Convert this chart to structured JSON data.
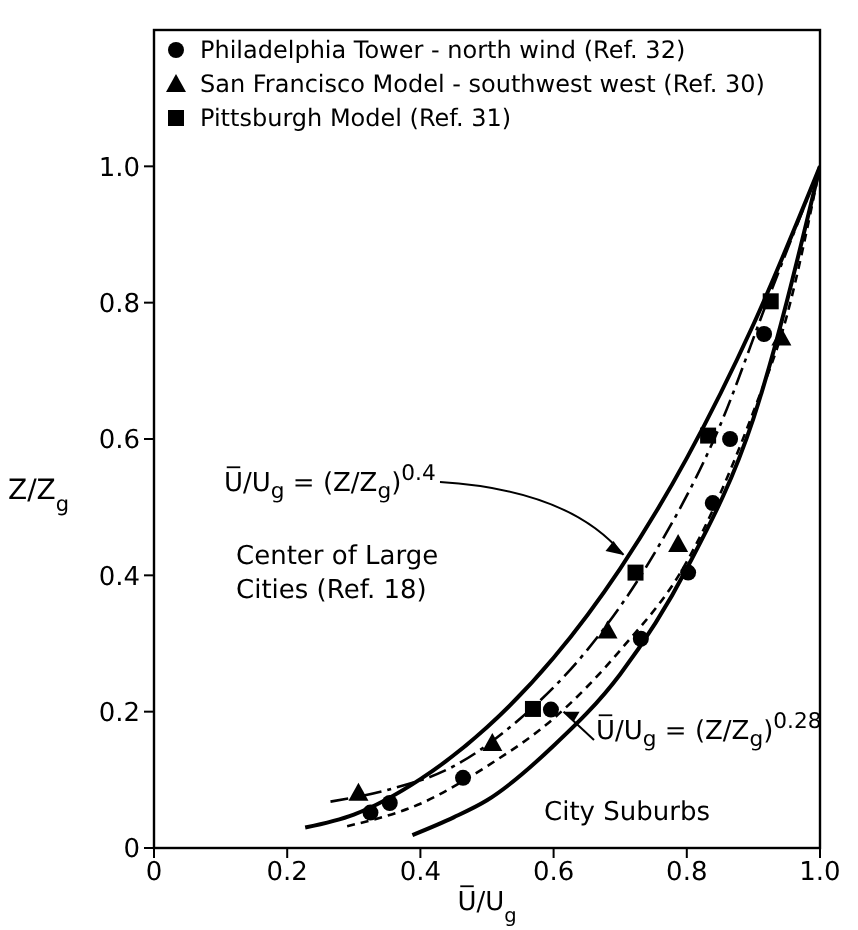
{
  "chart_data": {
    "type": "scatter",
    "xlabel": "U̅/U$_{g}$",
    "ylabel": "Z/Z$_{g}$",
    "xlim": [
      0,
      1.0
    ],
    "ylim": [
      0,
      1.2
    ],
    "xticks": [
      0,
      0.2,
      0.4,
      0.6,
      0.8,
      {
        "value": 1.0,
        "label": "1.0"
      }
    ],
    "yticks": [
      0,
      0.2,
      0.4,
      0.6,
      0.8,
      {
        "value": 1.0,
        "label": "1.0"
      }
    ],
    "grid": false,
    "legend": "top left",
    "annotations": [
      {
        "text": "U̅/U$_{g}$ = (Z/Z$_{g}$)$^{0.4}$",
        "x": 0.705,
        "y": 0.43
      },
      "Center of Large Cities (Ref. 18)",
      {
        "text": "U̅/U$_{g}$ = (Z/Z$_{g}$)$^{0.28}$",
        "x": 0.615,
        "y": 0.2
      },
      "City Suburbs"
    ],
    "series": [
      {
        "name": "Philadelphia Tower - north wind (Ref. 32)",
        "marker": "circle",
        "color": "#000000",
        "x": [
          0.325,
          0.354,
          0.464,
          0.596,
          0.731,
          0.802,
          0.839,
          0.865,
          0.916
        ],
        "values": [
          0.052,
          0.066,
          0.103,
          0.203,
          0.307,
          0.404,
          0.506,
          0.6,
          0.754
        ]
      },
      {
        "name": "San Francisco Model - southwest west (Ref. 30)",
        "marker": "triangle",
        "color": "#000000",
        "x": [
          0.307,
          0.508,
          0.681,
          0.787,
          0.942
        ],
        "values": [
          0.081,
          0.154,
          0.319,
          0.446,
          0.749
        ]
      },
      {
        "name": "Pittsburgh Model (Ref. 31)",
        "marker": "square",
        "color": "#000000",
        "x": [
          0.569,
          0.723,
          0.832,
          0.926
        ],
        "values": [
          0.204,
          0.404,
          0.605,
          0.802
        ]
      },
      {
        "type": "line",
        "line_style": "solid",
        "color": "#000000",
        "x": [
          0.227,
          0.3,
          0.4,
          0.5,
          0.6,
          0.7,
          0.8,
          0.9,
          1.0
        ],
        "values": [
          0.03,
          0.049,
          0.101,
          0.177,
          0.279,
          0.41,
          0.572,
          0.768,
          1.0
        ]
      },
      {
        "type": "line",
        "line_style": "solid",
        "color": "#000000",
        "x": [
          0.388,
          0.45,
          0.5,
          0.6,
          0.7,
          0.8,
          0.9,
          1.0
        ],
        "values": [
          0.019,
          0.045,
          0.07,
          0.15,
          0.255,
          0.41,
          0.63,
          1.0
        ]
      },
      {
        "type": "line",
        "line_style": "dashed",
        "color": "#000000",
        "x": [
          0.265,
          0.35,
          0.45,
          0.55,
          0.65,
          0.75,
          0.85,
          0.92,
          1.0
        ],
        "values": [
          0.068,
          0.085,
          0.12,
          0.19,
          0.29,
          0.43,
          0.62,
          0.8,
          1.0
        ]
      },
      {
        "type": "line",
        "line_style": "dotted",
        "color": "#000000",
        "x": [
          0.29,
          0.4,
          0.5,
          0.6,
          0.7,
          0.8,
          0.9,
          0.95,
          1.0
        ],
        "values": [
          0.032,
          0.065,
          0.12,
          0.19,
          0.29,
          0.42,
          0.64,
          0.78,
          1.0
        ]
      }
    ]
  }
}
